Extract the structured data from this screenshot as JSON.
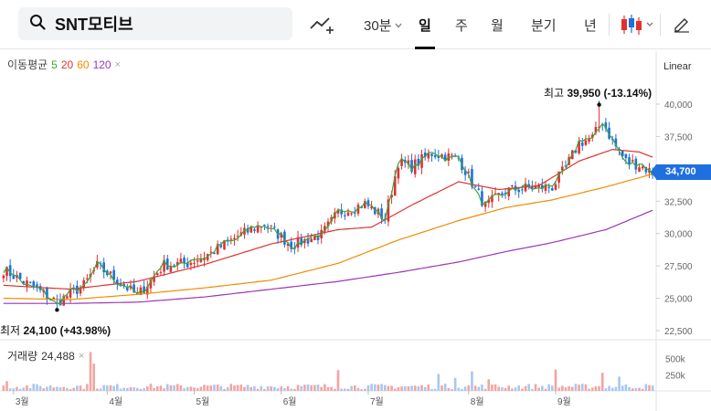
{
  "search": {
    "query": "SNT모티브"
  },
  "toolbar": {
    "indicator_icon": "indicator-line-plus-icon",
    "periods": [
      "30분",
      "일",
      "주",
      "월",
      "분기",
      "년"
    ],
    "active_period": "일",
    "candle_icon": "candlestick-icon",
    "draw_icon": "pencil-icon"
  },
  "legend": {
    "label": "이동평균",
    "ma": [
      {
        "period": "5",
        "color": "#3aa63a"
      },
      {
        "period": "20",
        "color": "#e03131"
      },
      {
        "period": "60",
        "color": "#f08c00"
      },
      {
        "period": "120",
        "color": "#9c36b5"
      }
    ],
    "close_symbol": "×"
  },
  "scale": {
    "label": "Linear"
  },
  "annotations": {
    "high_label": "최고",
    "high_value": "39,950 (-13.14%)",
    "low_label": "최저",
    "low_value": "24,100 (+43.98%)",
    "current_price": "34,700"
  },
  "volume": {
    "label": "거래량",
    "value": "24,488",
    "close_symbol": "×"
  },
  "chart_data": {
    "type": "candlestick",
    "scale": "linear",
    "y_ticks": [
      "40,000",
      "37,500",
      "35,000",
      "32,500",
      "30,000",
      "27,500",
      "25,000",
      "22,500"
    ],
    "y_tick_values": [
      40000,
      37500,
      35000,
      32500,
      30000,
      27500,
      25000,
      22500
    ],
    "ylim": [
      22500,
      41500
    ],
    "x_ticks": [
      "3월",
      "4월",
      "5월",
      "6월",
      "7월",
      "8월",
      "9월"
    ],
    "x_tick_index": [
      3,
      31,
      57,
      83,
      109,
      139,
      165
    ],
    "volume_ticks": [
      "500k",
      "250k"
    ],
    "volume_tick_values": [
      500000,
      250000
    ],
    "high": {
      "index": 178,
      "value": 39950
    },
    "low": {
      "index": 16,
      "value": 24100
    },
    "current": 34700,
    "n": 195,
    "close_anchors": [
      [
        0,
        27200
      ],
      [
        8,
        26000
      ],
      [
        16,
        24700
      ],
      [
        24,
        26000
      ],
      [
        28,
        27500
      ],
      [
        35,
        26200
      ],
      [
        40,
        25200
      ],
      [
        48,
        27600
      ],
      [
        55,
        27700
      ],
      [
        62,
        28500
      ],
      [
        70,
        29800
      ],
      [
        78,
        30800
      ],
      [
        86,
        29100
      ],
      [
        95,
        29900
      ],
      [
        100,
        31600
      ],
      [
        108,
        32300
      ],
      [
        114,
        31200
      ],
      [
        118,
        35500
      ],
      [
        122,
        35200
      ],
      [
        128,
        36200
      ],
      [
        136,
        35800
      ],
      [
        144,
        32100
      ],
      [
        150,
        33300
      ],
      [
        158,
        33600
      ],
      [
        164,
        33600
      ],
      [
        168,
        35100
      ],
      [
        172,
        37000
      ],
      [
        176,
        37400
      ],
      [
        179,
        38700
      ],
      [
        182,
        37100
      ],
      [
        186,
        35600
      ],
      [
        190,
        35300
      ],
      [
        194,
        34700
      ]
    ],
    "ma20_anchors": [
      [
        0,
        26000
      ],
      [
        20,
        25700
      ],
      [
        40,
        26300
      ],
      [
        60,
        27600
      ],
      [
        80,
        29200
      ],
      [
        100,
        30300
      ],
      [
        110,
        30500
      ],
      [
        122,
        32200
      ],
      [
        136,
        34000
      ],
      [
        148,
        33400
      ],
      [
        160,
        33700
      ],
      [
        172,
        35600
      ],
      [
        182,
        36500
      ],
      [
        190,
        36300
      ],
      [
        194,
        35900
      ]
    ],
    "ma60_anchors": [
      [
        0,
        25000
      ],
      [
        20,
        24900
      ],
      [
        40,
        25300
      ],
      [
        60,
        25800
      ],
      [
        80,
        26400
      ],
      [
        100,
        27700
      ],
      [
        118,
        29500
      ],
      [
        136,
        31000
      ],
      [
        150,
        32000
      ],
      [
        164,
        32600
      ],
      [
        180,
        33600
      ],
      [
        194,
        34600
      ]
    ],
    "ma120_anchors": [
      [
        0,
        24600
      ],
      [
        20,
        24600
      ],
      [
        40,
        24700
      ],
      [
        60,
        25100
      ],
      [
        80,
        25700
      ],
      [
        100,
        26300
      ],
      [
        118,
        27000
      ],
      [
        136,
        27800
      ],
      [
        150,
        28600
      ],
      [
        164,
        29300
      ],
      [
        180,
        30300
      ],
      [
        194,
        31800
      ]
    ],
    "volume_spikes": [
      [
        1,
        150000
      ],
      [
        26,
        600000
      ],
      [
        27,
        420000
      ],
      [
        100,
        320000
      ],
      [
        130,
        260000
      ],
      [
        135,
        200000
      ],
      [
        140,
        300000
      ],
      [
        145,
        180000
      ],
      [
        165,
        330000
      ],
      [
        179,
        280000
      ],
      [
        184,
        220000
      ]
    ],
    "volume_base": 70000
  }
}
